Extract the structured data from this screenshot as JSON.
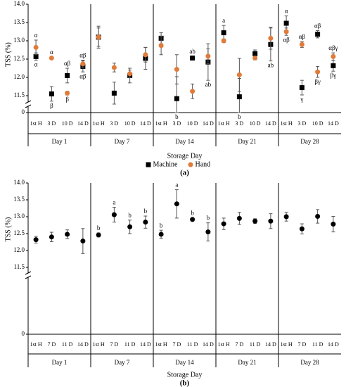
{
  "chart_data": [
    {
      "type": "scatter",
      "panel_label": "(a)",
      "y_label": "TSS (%)",
      "x_label": "Storage Day",
      "groups": [
        "Day 1",
        "Day 7",
        "Day 14",
        "Day 21",
        "Day 28"
      ],
      "categories": [
        "1st H",
        "3 D",
        "10 D",
        "14 D",
        "1st H",
        "3 D",
        "10 D",
        "14 D",
        "1st H",
        "3 D",
        "10 D",
        "14 D",
        "1st H",
        "3 D",
        "10 D",
        "14 D",
        "1st H",
        "3 D",
        "10 D",
        "14 D"
      ],
      "ylim": [
        11.25,
        14
      ],
      "yticks": [
        0,
        11.5,
        {
          "value": 12,
          "label": "12.0"
        },
        12.5,
        {
          "value": 13,
          "label": "13.0"
        },
        13.5,
        {
          "value": 14,
          "label": "14.0"
        }
      ],
      "legend": "bottom",
      "series": [
        {
          "name": "Machine",
          "color": "#000000",
          "marker": "square",
          "values": [
            12.57,
            11.55,
            12.05,
            12.3,
            13.1,
            11.57,
            12.05,
            12.52,
            13.07,
            11.42,
            12.53,
            12.42,
            13.22,
            11.47,
            12.65,
            12.9,
            13.48,
            11.72,
            13.18,
            12.32
          ],
          "errors": [
            0.1,
            0.2,
            0.2,
            0.15,
            0.3,
            0.3,
            0.2,
            0.3,
            0.15,
            0.6,
            0.05,
            0.5,
            0.2,
            0.5,
            0.1,
            0.45,
            0.2,
            0.2,
            0.1,
            0.15
          ],
          "labels": [
            "α",
            "β",
            "αβ",
            "αβ",
            null,
            null,
            null,
            null,
            null,
            "b",
            "ab",
            "ab",
            "a",
            "b",
            null,
            "ab",
            "α",
            "γ",
            "αβ",
            "βγ"
          ]
        },
        {
          "name": "Hand",
          "color": "#e07b39",
          "marker": "circle",
          "values": [
            12.82,
            12.53,
            11.57,
            12.37,
            13.1,
            12.27,
            12.1,
            12.62,
            12.87,
            12.22,
            11.62,
            12.58,
            13.0,
            12.07,
            12.53,
            13.07,
            13.25,
            12.9,
            12.15,
            12.57
          ],
          "errors": [
            0.2,
            0.03,
            0.05,
            0.1,
            0.25,
            0.12,
            0.1,
            0.2,
            0.25,
            0.4,
            0.2,
            0.2,
            0.05,
            0.45,
            0.05,
            0.3,
            0.1,
            0.08,
            0.15,
            0.1
          ],
          "labels": [
            "α",
            "α",
            "β",
            "αβ",
            null,
            null,
            null,
            null,
            null,
            null,
            null,
            null,
            null,
            null,
            null,
            null,
            "αβ",
            "αβ",
            "βγ",
            "αβγ"
          ]
        }
      ]
    },
    {
      "type": "scatter",
      "panel_label": "(b)",
      "y_label": "TSS (%)",
      "x_label": "Storage Day",
      "groups": [
        "Day 1",
        "Day 7",
        "Day 14",
        "Day 21",
        "Day 28"
      ],
      "categories": [
        "1st H",
        "7 D",
        "11 D",
        "14 D",
        "1st H",
        "7 D",
        "11 D",
        "14 D",
        "1st H",
        "7 D",
        "11 D",
        "14 D",
        "1st H",
        "7 D",
        "11 D",
        "14 D",
        "1st H",
        "7 D",
        "11 D",
        "14 D"
      ],
      "ylim": [
        11.25,
        14
      ],
      "yticks": [
        0,
        11.5,
        {
          "value": 12,
          "label": "12.0"
        },
        12.5,
        {
          "value": 13,
          "label": "13.0"
        },
        13.5,
        {
          "value": 14,
          "label": "14.0"
        }
      ],
      "color": "#000000",
      "values": [
        12.32,
        12.4,
        12.48,
        12.28,
        12.46,
        13.06,
        12.7,
        12.84,
        12.48,
        13.38,
        12.92,
        12.55,
        12.79,
        12.95,
        12.87,
        12.87,
        13.0,
        12.64,
        13.01,
        12.78
      ],
      "errors": [
        0.1,
        0.14,
        0.13,
        0.37,
        0.06,
        0.22,
        0.2,
        0.18,
        0.12,
        0.42,
        0.05,
        0.27,
        0.17,
        0.18,
        0.07,
        0.22,
        0.13,
        0.15,
        0.2,
        0.23
      ],
      "labels": [
        null,
        null,
        null,
        null,
        "b",
        "a",
        "b",
        "b",
        "b",
        "a",
        "b",
        "b",
        null,
        null,
        null,
        null,
        null,
        null,
        null,
        null
      ]
    }
  ]
}
